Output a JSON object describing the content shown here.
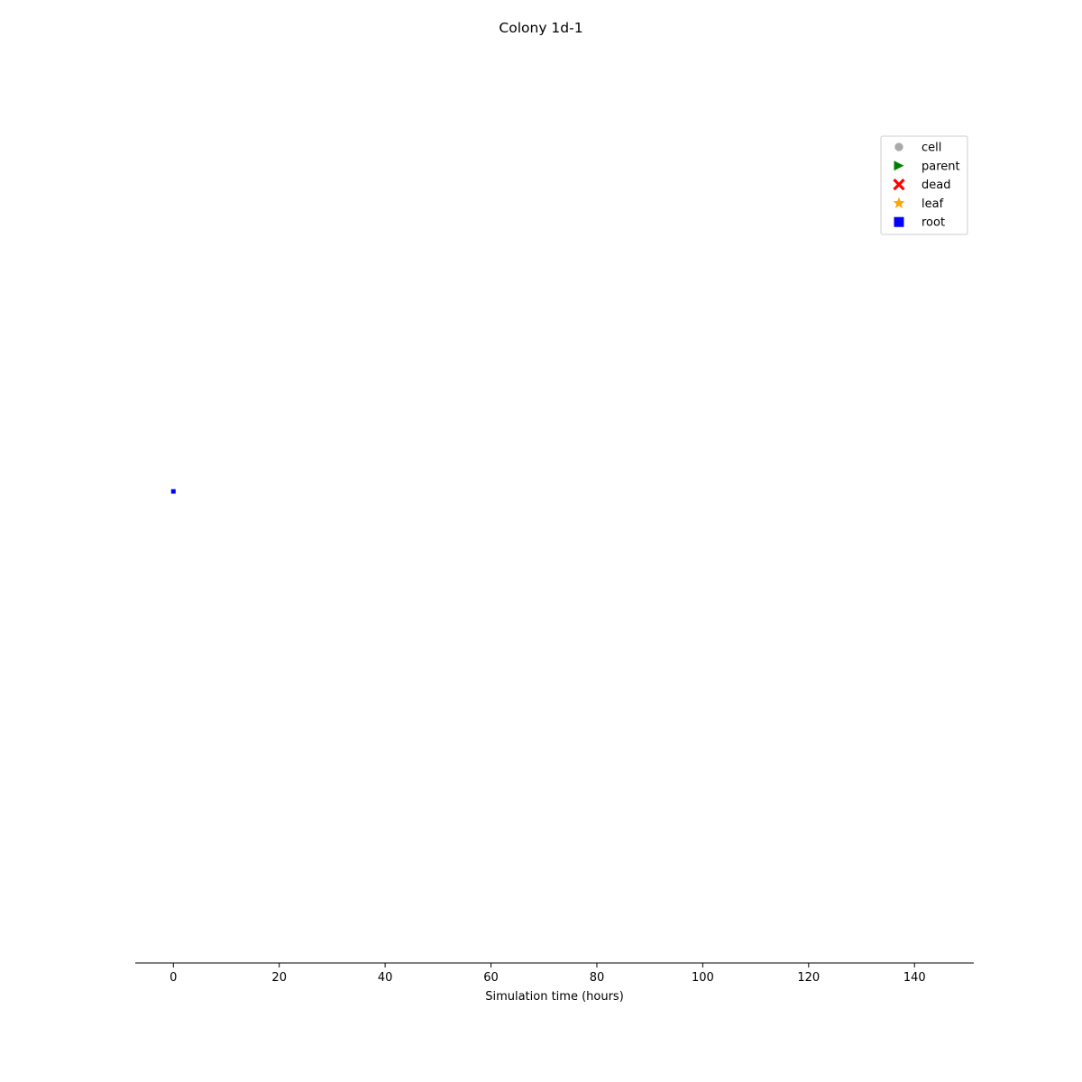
{
  "chart_data": {
    "type": "scatter",
    "title": "Colony 1d-1",
    "xlabel": "Simulation time (hours)",
    "ylabel": "",
    "xlim": [
      -7.2,
      151.2
    ],
    "ylim": [
      -1,
      1
    ],
    "x_ticks": [
      0,
      20,
      40,
      60,
      80,
      100,
      120,
      140
    ],
    "x_tick_labels": [
      "0",
      "20",
      "40",
      "60",
      "80",
      "100",
      "120",
      "140"
    ],
    "grid": false,
    "y_axis_visible": false,
    "legend": {
      "placement": "top-right",
      "entries": [
        {
          "label": "cell",
          "marker": "circle",
          "color": "#aaaaaa"
        },
        {
          "label": "parent",
          "marker": "triangle-right",
          "color": "#008000"
        },
        {
          "label": "dead",
          "marker": "x",
          "color": "#ff0000"
        },
        {
          "label": "leaf",
          "marker": "star",
          "color": "#ffa500"
        },
        {
          "label": "root",
          "marker": "square",
          "color": "#0000ff"
        }
      ]
    },
    "series": [
      {
        "marker": "square",
        "color": "#0000ff",
        "points": [
          {
            "x": 0,
            "y": 0
          }
        ]
      }
    ]
  }
}
